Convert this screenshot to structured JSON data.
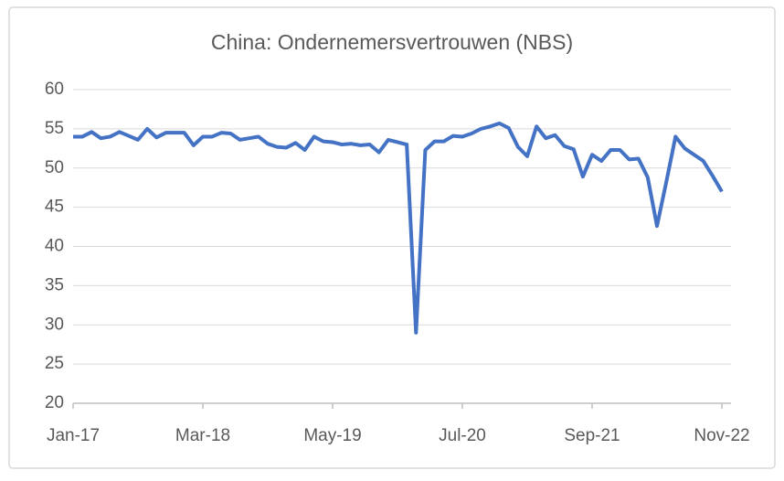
{
  "chart_data": {
    "type": "line",
    "title": "China: Ondernemersvertrouwen (NBS)",
    "categories": [
      "Jan-17",
      null,
      null,
      null,
      null,
      null,
      null,
      null,
      null,
      null,
      null,
      null,
      null,
      null,
      "Mar-18",
      null,
      null,
      null,
      null,
      null,
      null,
      null,
      null,
      null,
      null,
      null,
      null,
      null,
      "May-19",
      null,
      null,
      null,
      null,
      null,
      null,
      null,
      null,
      null,
      null,
      null,
      null,
      null,
      "Jul-20",
      null,
      null,
      null,
      null,
      null,
      null,
      null,
      null,
      null,
      null,
      null,
      null,
      null,
      "Sep-21",
      null,
      null,
      null,
      null,
      null,
      null,
      null,
      null,
      null,
      null,
      null,
      null,
      null,
      "Nov-22"
    ],
    "series": [
      {
        "color": "#4472c4",
        "values": [
          54.0,
          54.0,
          54.6,
          53.8,
          54.0,
          54.6,
          54.1,
          53.6,
          55.0,
          53.9,
          54.5,
          54.5,
          54.5,
          52.9,
          54.0,
          54.0,
          54.5,
          54.4,
          53.6,
          53.8,
          54.0,
          53.1,
          52.7,
          52.6,
          53.2,
          52.3,
          54.0,
          53.4,
          53.3,
          53.0,
          53.1,
          52.9,
          53.0,
          52.0,
          53.6,
          53.3,
          53.0,
          29.0,
          52.3,
          53.4,
          53.4,
          54.1,
          54.0,
          54.4,
          55.0,
          55.3,
          55.7,
          55.1,
          52.7,
          51.5,
          55.3,
          53.8,
          54.2,
          52.8,
          52.4,
          48.9,
          51.7,
          50.9,
          52.3,
          52.3,
          51.1,
          51.2,
          48.8,
          42.6,
          48.2,
          54.0,
          52.5,
          51.7,
          50.9,
          49.0,
          47.0
        ]
      }
    ],
    "ylim": [
      20,
      60
    ],
    "yticks": [
      20,
      25,
      30,
      35,
      40,
      45,
      50,
      55,
      60
    ],
    "grid": true
  }
}
